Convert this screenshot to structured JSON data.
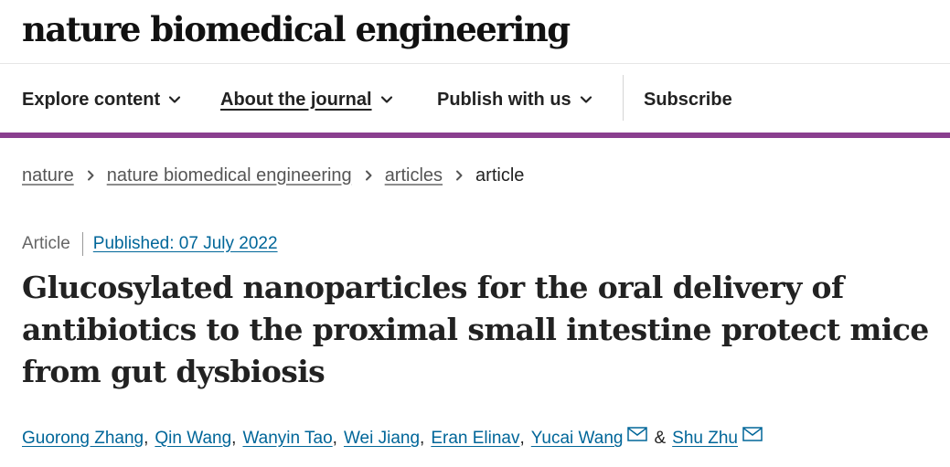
{
  "site": {
    "logo_text": "nature biomedical engineering",
    "accent_color": "#8a3f8f",
    "link_color": "#006699"
  },
  "nav": {
    "items": [
      {
        "label": "Explore content",
        "has_dropdown": true,
        "active": false
      },
      {
        "label": "About the journal",
        "has_dropdown": true,
        "active": true
      },
      {
        "label": "Publish with us",
        "has_dropdown": true,
        "active": false
      }
    ],
    "subscribe_label": "Subscribe",
    "chevron_icon": "chevron-down-icon"
  },
  "breadcrumb": {
    "items": [
      "nature",
      "nature biomedical engineering",
      "articles"
    ],
    "current": "article",
    "separator_icon": "chevron-right-icon"
  },
  "article": {
    "type": "Article",
    "published": "Published: 07 July 2022",
    "title": "Glucosylated nanoparticles for the oral delivery of antibiotics to the proximal small intestine protect mice from gut dysbiosis",
    "authors": [
      "Guorong Zhang",
      "Qin Wang",
      "Wanyin Tao",
      "Wei Jiang",
      "Eran Elinav",
      "Yucai Wang",
      "Shu Zhu"
    ],
    "author_separator": ",",
    "ampersand": "&",
    "corresponding_icon": "mail-icon"
  }
}
